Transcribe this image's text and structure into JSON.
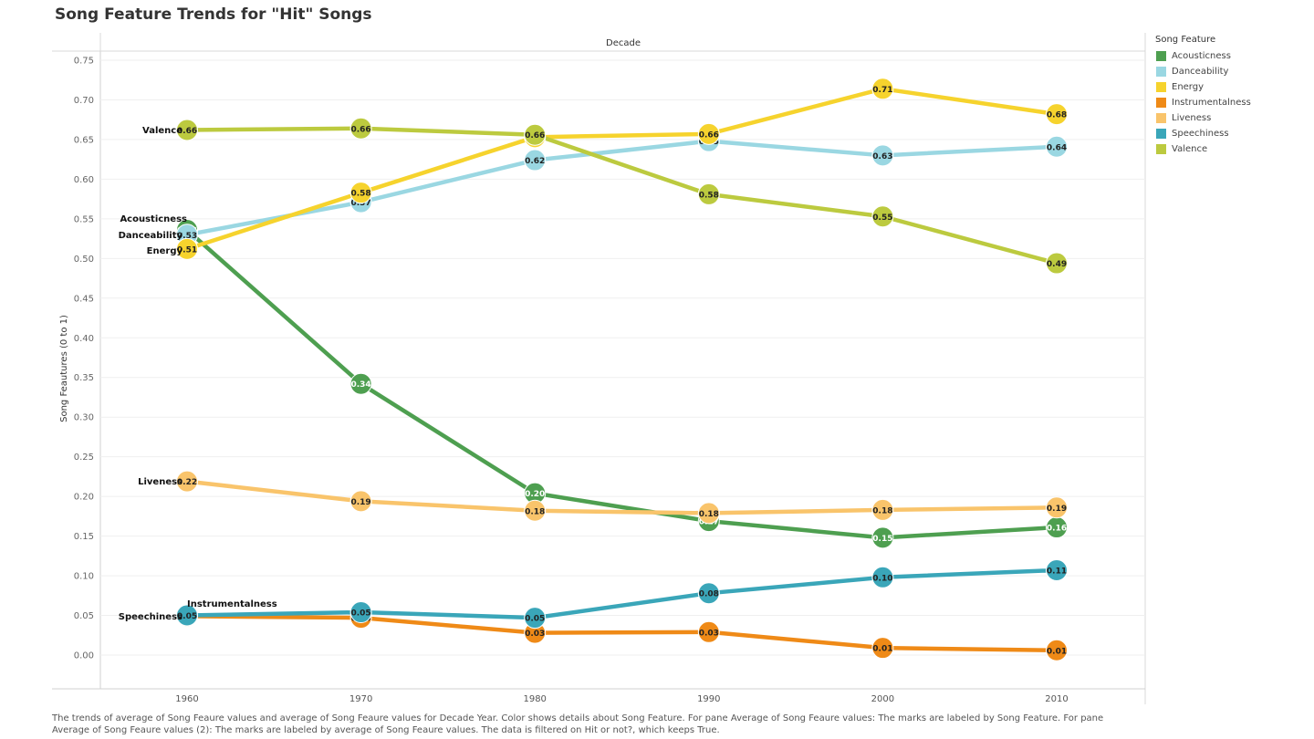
{
  "title": "Song Feature Trends for \"Hit\" Songs",
  "caption": "The trends of average of Song Feaure values and average of Song Feaure values for Decade Year.  Color shows details about Song Feature.  For pane Average of Song Feaure values:  The marks are labeled by Song Feature.  For pane Average of Song Feaure values (2):  The marks are labeled by average of Song Feaure values. The data is filtered on Hit or not?, which keeps True.",
  "legend": {
    "title": "Song Feature",
    "items": [
      {
        "label": "Acousticness",
        "color": "#4e9f50"
      },
      {
        "label": "Danceability",
        "color": "#9ad7e2"
      },
      {
        "label": "Energy",
        "color": "#f6d32d"
      },
      {
        "label": "Instrumentalness",
        "color": "#ef8a17"
      },
      {
        "label": "Liveness",
        "color": "#f9c46b"
      },
      {
        "label": "Speechiness",
        "color": "#3aa6b9"
      },
      {
        "label": "Valence",
        "color": "#bcca3f"
      }
    ]
  },
  "chart_data": {
    "type": "line",
    "title": "Song Feature Trends for \"Hit\" Songs",
    "x_header": "Decade",
    "ylabel": "Song Feautures (0 to 1)",
    "categories": [
      "1960",
      "1970",
      "1980",
      "1990",
      "2000",
      "2010"
    ],
    "ylim": [
      0,
      0.75
    ],
    "yticks": [
      "0.00",
      "0.05",
      "0.10",
      "0.15",
      "0.20",
      "0.25",
      "0.30",
      "0.35",
      "0.40",
      "0.45",
      "0.50",
      "0.55",
      "0.60",
      "0.65",
      "0.70",
      "0.75"
    ],
    "grid": true,
    "legend_position": "right",
    "series": [
      {
        "name": "Acousticness",
        "color": "#4e9f50",
        "values": [
          0.536,
          0.342,
          0.204,
          0.169,
          0.148,
          0.161
        ],
        "labels": [
          "0.54",
          "0.34",
          "0.20",
          "0.17",
          "0.15",
          "0.16"
        ],
        "label_color": "#ffffff"
      },
      {
        "name": "Danceability",
        "color": "#9ad7e2",
        "values": [
          0.53,
          0.571,
          0.624,
          0.648,
          0.63,
          0.641
        ],
        "labels": [
          "0.53",
          "0.57",
          "0.62",
          "0.65",
          "0.63",
          "0.64"
        ],
        "label_color": "#222222"
      },
      {
        "name": "Energy",
        "color": "#f6d32d",
        "values": [
          0.512,
          0.583,
          0.653,
          0.657,
          0.714,
          0.682
        ],
        "labels": [
          "0.51",
          "0.58",
          "0.65",
          "0.66",
          "0.71",
          "0.68"
        ],
        "label_color": "#222222"
      },
      {
        "name": "Instrumentalness",
        "color": "#ef8a17",
        "values": [
          0.049,
          0.047,
          0.028,
          0.029,
          0.009,
          0.006
        ],
        "labels": [
          "0.05",
          "0.05",
          "0.03",
          "0.03",
          "0.01",
          "0.01"
        ],
        "label_color": "#222222"
      },
      {
        "name": "Liveness",
        "color": "#f9c46b",
        "values": [
          0.219,
          0.194,
          0.182,
          0.179,
          0.183,
          0.186
        ],
        "labels": [
          "0.22",
          "0.19",
          "0.18",
          "0.18",
          "0.18",
          "0.19"
        ],
        "label_color": "#222222"
      },
      {
        "name": "Speechiness",
        "color": "#3aa6b9",
        "values": [
          0.05,
          0.054,
          0.047,
          0.078,
          0.098,
          0.107
        ],
        "labels": [
          "0.05",
          "0.05",
          "0.05",
          "0.08",
          "0.10",
          "0.11"
        ],
        "label_color": "#222222"
      },
      {
        "name": "Valence",
        "color": "#bcca3f",
        "values": [
          0.662,
          0.664,
          0.656,
          0.581,
          0.553,
          0.494
        ],
        "labels": [
          "0.66",
          "0.66",
          "0.66",
          "0.58",
          "0.55",
          "0.49"
        ],
        "label_color": "#222222"
      }
    ]
  }
}
